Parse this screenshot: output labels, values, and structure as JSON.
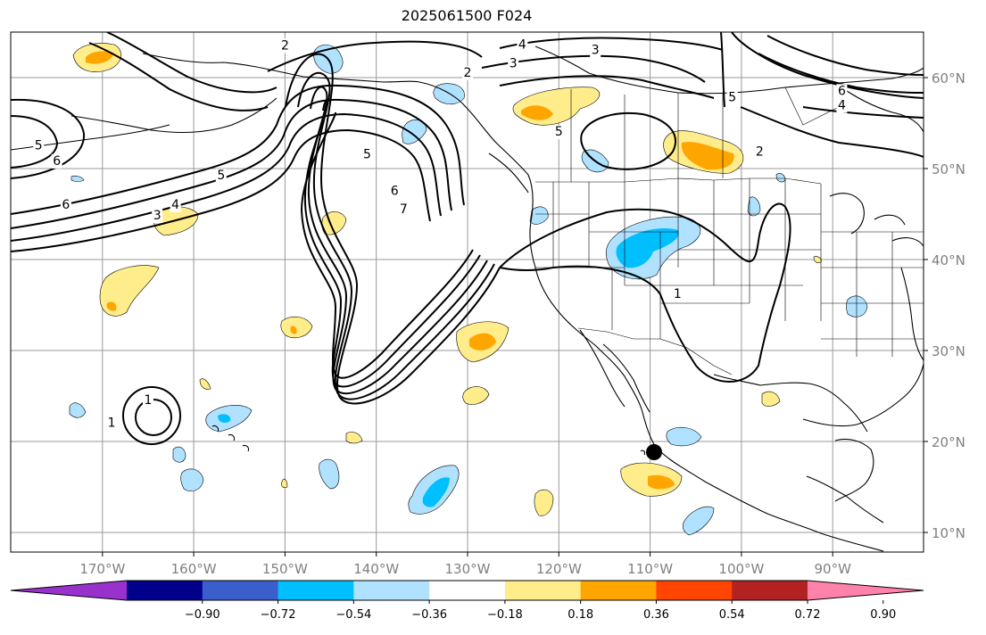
{
  "title": "2025061500 F024",
  "lat_labels": [
    {
      "text": "60°N",
      "lat": 60
    },
    {
      "text": "50°N",
      "lat": 50
    },
    {
      "text": "40°N",
      "lat": 40
    },
    {
      "text": "30°N",
      "lat": 30
    },
    {
      "text": "20°N",
      "lat": 20
    },
    {
      "text": "10°N",
      "lat": 10
    }
  ],
  "lon_labels": [
    {
      "text": "170°W",
      "lon": -170
    },
    {
      "text": "160°W",
      "lon": -160
    },
    {
      "text": "150°W",
      "lon": -150
    },
    {
      "text": "140°W",
      "lon": -140
    },
    {
      "text": "130°W",
      "lon": -130
    },
    {
      "text": "120°W",
      "lon": -120
    },
    {
      "text": "110°W",
      "lon": -110
    },
    {
      "text": "100°W",
      "lon": -100
    },
    {
      "text": "90°W",
      "lon": -90
    }
  ],
  "colorbar": {
    "colors": [
      "#9932cc",
      "#00008b",
      "#3a5fcd",
      "#00bfff",
      "#b0e2ff",
      "#ffffff",
      "#ffec8b",
      "#ffa500",
      "#ff4500",
      "#b22222",
      "#ff82ab"
    ],
    "tick_labels": [
      "−0.90",
      "−0.72",
      "−0.54",
      "−0.36",
      "−0.18",
      "0.18",
      "0.36",
      "0.54",
      "0.72",
      "0.90"
    ]
  },
  "contour_labels": [
    {
      "text": "2",
      "lon": -150,
      "lat": 63.5
    },
    {
      "text": "4",
      "lon": -124,
      "lat": 63.6
    },
    {
      "text": "3",
      "lon": -116,
      "lat": 63.0
    },
    {
      "text": "3",
      "lon": -125,
      "lat": 61.5
    },
    {
      "text": "2",
      "lon": -130,
      "lat": 60.5
    },
    {
      "text": "5",
      "lon": -120,
      "lat": 54.0
    },
    {
      "text": "5",
      "lon": -101,
      "lat": 57.8
    },
    {
      "text": "6",
      "lon": -89,
      "lat": 58.5
    },
    {
      "text": "4",
      "lon": -89,
      "lat": 56.9
    },
    {
      "text": "2",
      "lon": -98,
      "lat": 51.8
    },
    {
      "text": "6",
      "lon": -175,
      "lat": 50.8
    },
    {
      "text": "5",
      "lon": -177,
      "lat": 52.5
    },
    {
      "text": "6",
      "lon": -174,
      "lat": 46.0
    },
    {
      "text": "5",
      "lon": -157,
      "lat": 49.2
    },
    {
      "text": "4",
      "lon": -162,
      "lat": 46.0
    },
    {
      "text": "3",
      "lon": -164,
      "lat": 44.8
    },
    {
      "text": "5",
      "lon": -141,
      "lat": 51.5
    },
    {
      "text": "6",
      "lon": -138,
      "lat": 47.5
    },
    {
      "text": "7",
      "lon": -137,
      "lat": 45.5
    },
    {
      "text": "1",
      "lon": -107,
      "lat": 36.2
    },
    {
      "text": "1",
      "lon": -165,
      "lat": 24.5
    },
    {
      "text": "1",
      "lon": -169,
      "lat": 22.0
    }
  ]
}
